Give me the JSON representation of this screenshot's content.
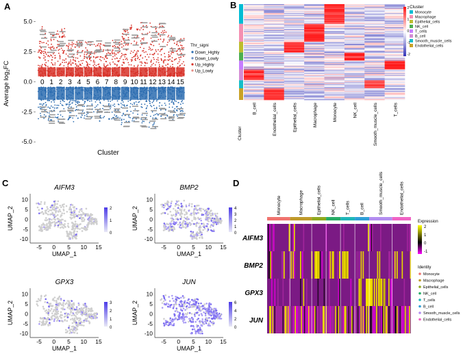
{
  "panels": {
    "A": "A",
    "B": "B",
    "C": "C",
    "D": "D"
  },
  "chart_data": [
    {
      "panel": "A",
      "type": "scatter",
      "xlabel": "Cluster",
      "ylabel": "Average log2FC",
      "ylabel_parts": {
        "main": "Average log",
        "sub": "2",
        "tail": "FC"
      },
      "ylim": [
        -5.5,
        6
      ],
      "yticks": [
        "5.0",
        "2.5",
        "0.0",
        "-2.5",
        "-5.0"
      ],
      "ytick_values": [
        5,
        2.5,
        0,
        -2.5,
        -5
      ],
      "clusters": [
        "0",
        "1",
        "2",
        "3",
        "4",
        "5",
        "6",
        "7",
        "8",
        "9",
        "10",
        "11",
        "12",
        "13",
        "14",
        "15"
      ],
      "legend_title": "Thr_signi",
      "legend": [
        "Down_Highly",
        "Down_Lowly",
        "Up_Highly",
        "Up_Lowly"
      ],
      "up_max": [
        4.6,
        4.0,
        4.5,
        3.3,
        3.5,
        3.3,
        3.3,
        3.1,
        3.5,
        4.4,
        4.7,
        5.1,
        4.9,
        4.8,
        3.9,
        3.6
      ],
      "down_min": [
        -3.2,
        -3.4,
        -3.6,
        -3.5,
        -3.1,
        -3.1,
        -3.4,
        -3.2,
        -3.2,
        -3.6,
        -3.4,
        -3.6,
        -3.8,
        -3.1,
        -3.2,
        -3.0
      ],
      "series": [
        {
          "name": "Up",
          "color": "#d73027"
        },
        {
          "name": "Down",
          "color": "#2b6cb0"
        }
      ]
    },
    {
      "panel": "B",
      "type": "heatmap",
      "columns": [
        "B_cell",
        "Endothelial_cells",
        "Epithelial_cells",
        "Macrophage",
        "Monocyte",
        "NK_cell",
        "Smooth_muscle_cells",
        "T_cells"
      ],
      "row_annotation_label": "Cluster",
      "row_groups": [
        {
          "cluster": "Monocyte",
          "color": "#00bcd4",
          "high_col": "Monocyte",
          "n": 22
        },
        {
          "cluster": "Macrophage",
          "color": "#f48fb1",
          "high_col": "Macrophage",
          "n": 20
        },
        {
          "cluster": "Epithelial_cells",
          "color": "#bdbd2e",
          "high_col": "Epithelial_cells",
          "n": 12
        },
        {
          "cluster": "NK_cell",
          "color": "#4caf50",
          "high_col": "NK_cell",
          "n": 9
        },
        {
          "cluster": "T_cells",
          "color": "#c77dff",
          "high_col": "T_cells",
          "n": 10
        },
        {
          "cluster": "B_cell",
          "color": "#d48cd4",
          "high_col": "B_cell",
          "n": 12
        },
        {
          "cluster": "Smooth_muscle_cells",
          "color": "#17bec9",
          "high_col": "Smooth_muscle_cells",
          "n": 9
        },
        {
          "cluster": "Endothelial_cells",
          "color": "#c9a227",
          "high_col": "Endothelial_cells",
          "n": 13
        }
      ],
      "legend_title": "Cluster",
      "legend": [
        "Monocyte",
        "Macrophage",
        "Epithelial_cells",
        "NK_cell",
        "T_cells",
        "B_cell",
        "Smooth_muscle_cells",
        "Endothelial_cells"
      ],
      "colorbar_ticks": [
        "2",
        "1",
        "0",
        "-1",
        "-2"
      ],
      "colorbar_range": [
        -2,
        2
      ]
    },
    {
      "panel": "C",
      "type": "scatter",
      "subplots": [
        {
          "gene": "AIFM3",
          "cbar_ticks": [
            "2",
            "1",
            "0"
          ],
          "level": 0.12
        },
        {
          "gene": "BMP2",
          "cbar_ticks": [
            "4",
            "3",
            "2",
            "1",
            "0"
          ],
          "level": 0.35
        },
        {
          "gene": "GPX3",
          "cbar_ticks": [
            "3",
            "2",
            "1",
            "0"
          ],
          "level": 0.18
        },
        {
          "gene": "JUN",
          "cbar_ticks": [
            "6",
            "4",
            "2",
            "0"
          ],
          "level": 0.85
        }
      ],
      "xlabel": "UMAP_1",
      "ylabel": "UMAP_2",
      "xticks": [
        "-5",
        "0",
        "5",
        "10",
        "15"
      ],
      "xtick_values": [
        -5,
        0,
        5,
        10,
        15
      ],
      "yticks": [
        "10",
        "5",
        "0",
        "-5",
        "-10"
      ],
      "ytick_values": [
        10,
        5,
        0,
        -5,
        -10
      ],
      "xlim": [
        -8,
        15
      ],
      "ylim": [
        -12,
        13
      ]
    },
    {
      "panel": "D",
      "type": "heatmap",
      "genes": [
        "AIFM3",
        "BMP2",
        "GPX3",
        "JUN"
      ],
      "identities": [
        "Monocyte",
        "Macrophage",
        "Epithelial_cells",
        "NK_cell",
        "T_cells",
        "B_cell",
        "Smooth_muscle_cells",
        "Endothelial_cells"
      ],
      "identity_colors": [
        "#f0736e",
        "#c09a2b",
        "#8fa81e",
        "#27ad66",
        "#20b6b9",
        "#2f9fd8",
        "#b38df0",
        "#f063c4"
      ],
      "identity_weights": [
        0.16,
        0.15,
        0.1,
        0.1,
        0.1,
        0.1,
        0.16,
        0.13
      ],
      "legend_expression_title": "Expression",
      "expression_ticks": [
        "2",
        "1",
        "0",
        "-1"
      ],
      "expression_range": [
        -1.5,
        2.5
      ],
      "legend_identity_title": "Identity",
      "gene_patterns": [
        {
          "gene": "AIFM3",
          "base": 0.05,
          "hot": [],
          "spark": 0.03
        },
        {
          "gene": "BMP2",
          "base": 0.08,
          "hot": [
            [
              0.5,
              0.56
            ],
            [
              0.3,
              0.36
            ]
          ],
          "spark": 0.25
        },
        {
          "gene": "GPX3",
          "base": 0.05,
          "hot": [
            [
              0.62,
              0.82
            ]
          ],
          "spark": 0.1
        },
        {
          "gene": "JUN",
          "base": 0.35,
          "hot": [],
          "spark": 0.55
        }
      ]
    }
  ]
}
